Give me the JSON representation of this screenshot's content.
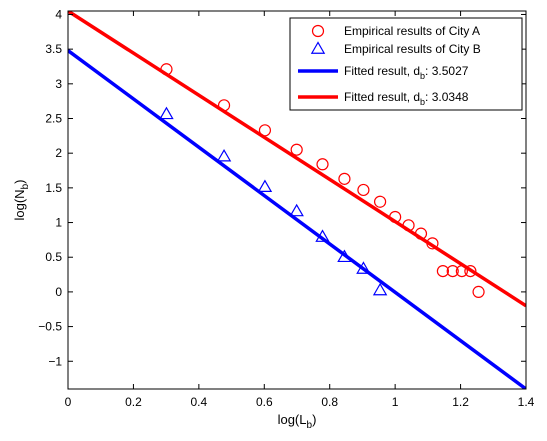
{
  "chart_data": {
    "type": "scatter",
    "xlabel": "log(L_b)",
    "ylabel": "log(N_b)",
    "xlim": [
      0,
      1.4
    ],
    "ylim": [
      -1.4,
      4.05
    ],
    "xticks": [
      0,
      0.2,
      0.4,
      0.6,
      0.8,
      1,
      1.2,
      1.4
    ],
    "yticks": [
      -1,
      -0.5,
      0,
      0.5,
      1,
      1.5,
      2,
      2.5,
      3,
      3.5,
      4
    ],
    "xtick_labels": [
      "0",
      "0.2",
      "0.4",
      "0.6",
      "0.8",
      "1",
      "1.2",
      "1.4"
    ],
    "ytick_labels": [
      "−1",
      "−0.5",
      "0",
      "0.5",
      "1",
      "1.5",
      "2",
      "2.5",
      "3",
      "3.5",
      "4"
    ],
    "grid": false,
    "legend_position": "top-right",
    "series": [
      {
        "name": "Empirical results of City A",
        "kind": "scatter",
        "marker": "circle",
        "color": "#ff0000",
        "x": [
          0.301,
          0.477,
          0.602,
          0.699,
          0.778,
          0.845,
          0.903,
          0.954,
          1.0,
          1.041,
          1.079,
          1.114,
          1.146,
          1.176,
          1.204,
          1.23,
          1.255
        ],
        "y": [
          3.21,
          2.69,
          2.33,
          2.05,
          1.84,
          1.63,
          1.47,
          1.3,
          1.08,
          0.96,
          0.84,
          0.7,
          0.3,
          0.3,
          0.3,
          0.3,
          0.0
        ]
      },
      {
        "name": "Empirical results of City B",
        "kind": "scatter",
        "marker": "triangle",
        "color": "#0000ff",
        "x": [
          0.301,
          0.477,
          0.602,
          0.699,
          0.778,
          0.845,
          0.903,
          0.954
        ],
        "y": [
          2.56,
          1.95,
          1.51,
          1.16,
          0.79,
          0.5,
          0.33,
          0.02
        ]
      },
      {
        "name": "Fitted result, d",
        "name_subscript": "b",
        "name_suffix": ": 3.5027",
        "kind": "line",
        "color": "#0000ff",
        "x": [
          0,
          1.4
        ],
        "y": [
          3.48,
          -1.4
        ]
      },
      {
        "name": "Fitted result, d",
        "name_subscript": "b",
        "name_suffix": ": 3.0348",
        "kind": "line",
        "color": "#ff0000",
        "x": [
          0,
          1.4
        ],
        "y": [
          4.05,
          -0.2
        ]
      }
    ]
  }
}
